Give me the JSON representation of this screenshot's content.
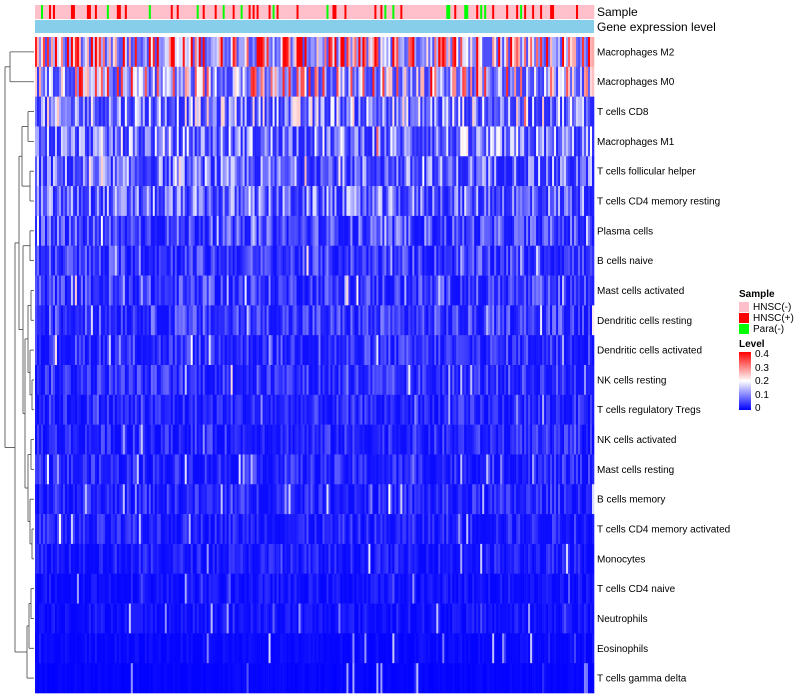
{
  "chart_data": {
    "type": "heatmap",
    "annotation_tracks": [
      "Sample",
      "Gene expression level"
    ],
    "row_labels": [
      "Macrophages M2",
      "Macrophages M0",
      "T cells CD8",
      "Macrophages M1",
      "T cells follicular helper",
      "T cells CD4 memory resting",
      "Plasma cells",
      "B cells naive",
      "Mast cells activated",
      "Dendritic cells resting",
      "Dendritic cells activated",
      "NK cells resting",
      "T cells regulatory  Tregs",
      "NK cells activated",
      "Mast cells resting",
      "B cells memory",
      "T cells CD4 memory activated",
      "Monocytes",
      "T cells CD4 naive",
      "Neutrophils",
      "Eosinophils",
      "T cells gamma delta"
    ],
    "row_mean_level": [
      0.3,
      0.22,
      0.14,
      0.12,
      0.1,
      0.1,
      0.07,
      0.06,
      0.06,
      0.06,
      0.05,
      0.05,
      0.04,
      0.04,
      0.04,
      0.04,
      0.035,
      0.03,
      0.02,
      0.02,
      0.01,
      0.005
    ],
    "legend": {
      "sample": {
        "title": "Sample",
        "items": [
          {
            "label": "HNSC(-)",
            "color": "#FFC0CB"
          },
          {
            "label": "HNSC(+)",
            "color": "#FF0000"
          },
          {
            "label": "Para(-)",
            "color": "#00FF00"
          }
        ]
      },
      "level": {
        "title": "Level",
        "ticks": [
          "0.4",
          "0.3",
          "0.2",
          "0.1",
          "0"
        ],
        "range": [
          0,
          0.4
        ],
        "colors": {
          "low": "#0000FF",
          "mid": "#FFFFFF",
          "high": "#FF0000"
        }
      }
    },
    "gene_expression_color": "#87CEEB"
  }
}
